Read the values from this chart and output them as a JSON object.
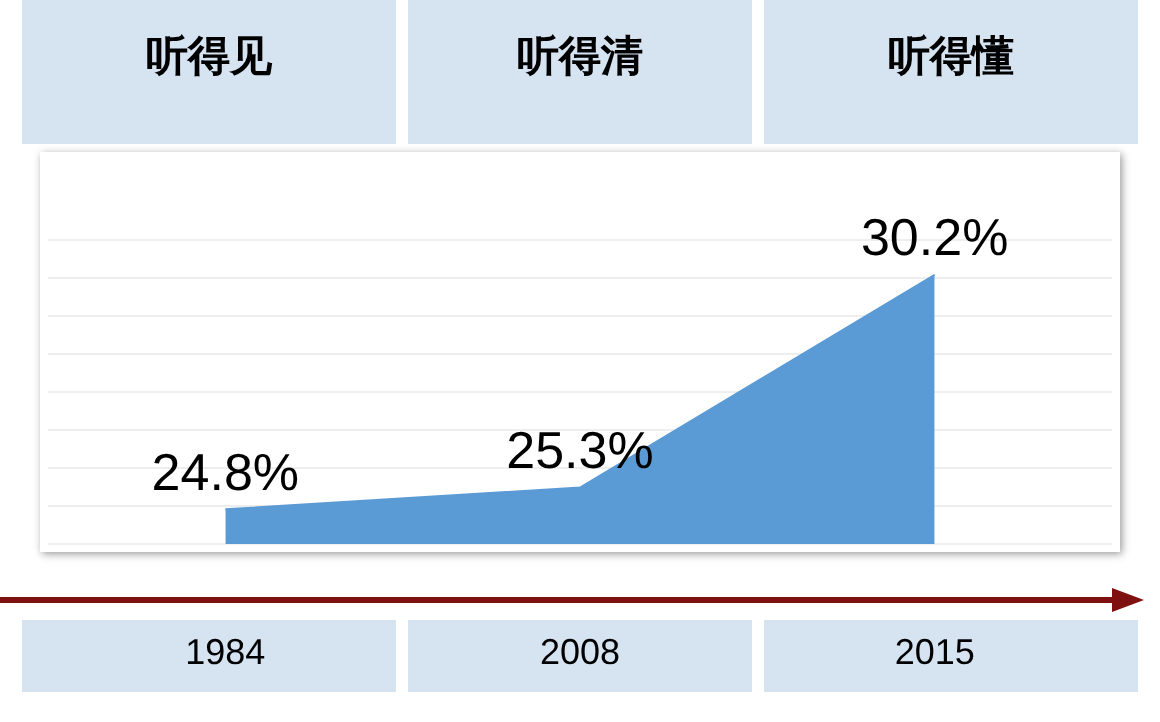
{
  "chart_data": {
    "type": "area",
    "categories": [
      "1984",
      "2008",
      "2015"
    ],
    "series": [
      {
        "color": "#5b9bd5",
        "values": [
          24.8,
          25.3,
          30.2
        ],
        "value_labels": [
          "24.8%",
          "25.3%",
          "30.2%"
        ]
      }
    ],
    "annotations": [
      "听得见",
      "听得清",
      "听得懂"
    ],
    "grid": "y",
    "legend": false
  }
}
